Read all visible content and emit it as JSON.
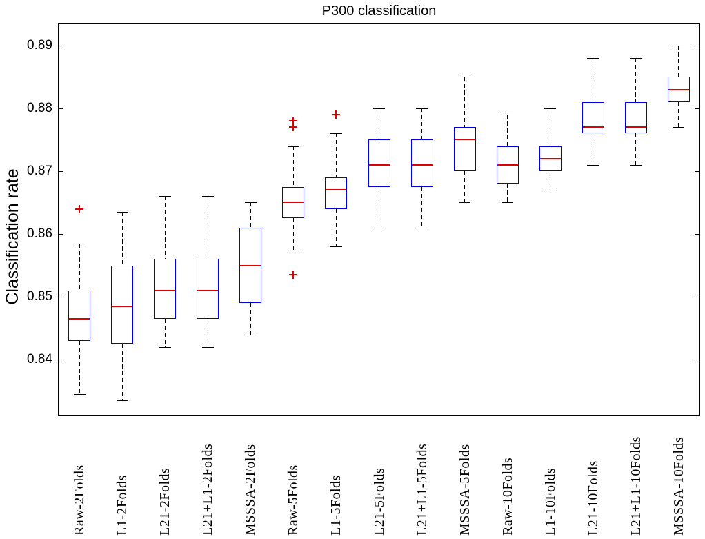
{
  "chart_data": {
    "type": "box",
    "title": "P300 classification",
    "ylabel": "Classification rate",
    "xlabel": "",
    "grid": false,
    "legend": null,
    "ylim": [
      0.831,
      0.8935
    ],
    "yticks": [
      0.84,
      0.85,
      0.86,
      0.87,
      0.88,
      0.89
    ],
    "ytick_labels": [
      "0.84",
      "0.85",
      "0.86",
      "0.87",
      "0.88",
      "0.89"
    ],
    "colors": {
      "box": "#0000e0",
      "median": "#e00000",
      "outlier": "#e00000",
      "whisker": "#000000",
      "axis": "#000000",
      "background": "#ffffff"
    },
    "categories": [
      "Raw-2Folds",
      "L1-2Folds",
      "L21-2Folds",
      "L21+L1-2Folds",
      "MSSSA-2Folds",
      "Raw-5Folds",
      "L1-5Folds",
      "L21-5Folds",
      "L21+L1-5Folds",
      "MSSSA-5Folds",
      "Raw-10Folds",
      "L1-10Folds",
      "L21-10Folds",
      "L21+L1-10Folds",
      "MSSSA-10Folds"
    ],
    "boxes": [
      {
        "label": "Raw-2Folds",
        "whislo": 0.8345,
        "q1": 0.843,
        "med": 0.8465,
        "q3": 0.851,
        "whishi": 0.8585,
        "outliers": [
          0.864
        ]
      },
      {
        "label": "L1-2Folds",
        "whislo": 0.8335,
        "q1": 0.8425,
        "med": 0.8485,
        "q3": 0.855,
        "whishi": 0.8635,
        "outliers": []
      },
      {
        "label": "L21-2Folds",
        "whislo": 0.842,
        "q1": 0.8465,
        "med": 0.851,
        "q3": 0.856,
        "whishi": 0.866,
        "outliers": []
      },
      {
        "label": "L21+L1-2Folds",
        "whislo": 0.842,
        "q1": 0.8465,
        "med": 0.851,
        "q3": 0.856,
        "whishi": 0.866,
        "outliers": []
      },
      {
        "label": "MSSSA-2Folds",
        "whislo": 0.844,
        "q1": 0.849,
        "med": 0.855,
        "q3": 0.861,
        "whishi": 0.865,
        "outliers": []
      },
      {
        "label": "Raw-5Folds",
        "whislo": 0.857,
        "q1": 0.8625,
        "med": 0.865,
        "q3": 0.8675,
        "whishi": 0.874,
        "outliers": [
          0.8535,
          0.877,
          0.878
        ]
      },
      {
        "label": "L1-5Folds",
        "whislo": 0.858,
        "q1": 0.864,
        "med": 0.867,
        "q3": 0.869,
        "whishi": 0.876,
        "outliers": [
          0.879
        ]
      },
      {
        "label": "L21-5Folds",
        "whislo": 0.861,
        "q1": 0.8675,
        "med": 0.871,
        "q3": 0.875,
        "whishi": 0.88,
        "outliers": []
      },
      {
        "label": "L21+L1-5Folds",
        "whislo": 0.861,
        "q1": 0.8675,
        "med": 0.871,
        "q3": 0.875,
        "whishi": 0.88,
        "outliers": []
      },
      {
        "label": "MSSSA-5Folds",
        "whislo": 0.865,
        "q1": 0.87,
        "med": 0.875,
        "q3": 0.877,
        "whishi": 0.885,
        "outliers": []
      },
      {
        "label": "Raw-10Folds",
        "whislo": 0.865,
        "q1": 0.868,
        "med": 0.871,
        "q3": 0.874,
        "whishi": 0.879,
        "outliers": []
      },
      {
        "label": "L1-10Folds",
        "whislo": 0.867,
        "q1": 0.87,
        "med": 0.872,
        "q3": 0.874,
        "whishi": 0.88,
        "outliers": []
      },
      {
        "label": "L21-10Folds",
        "whislo": 0.871,
        "q1": 0.876,
        "med": 0.877,
        "q3": 0.881,
        "whishi": 0.888,
        "outliers": []
      },
      {
        "label": "L21+L1-10Folds",
        "whislo": 0.871,
        "q1": 0.876,
        "med": 0.877,
        "q3": 0.881,
        "whishi": 0.888,
        "outliers": []
      },
      {
        "label": "MSSSA-10Folds",
        "whislo": 0.877,
        "q1": 0.881,
        "med": 0.883,
        "q3": 0.885,
        "whishi": 0.89,
        "outliers": []
      }
    ]
  }
}
